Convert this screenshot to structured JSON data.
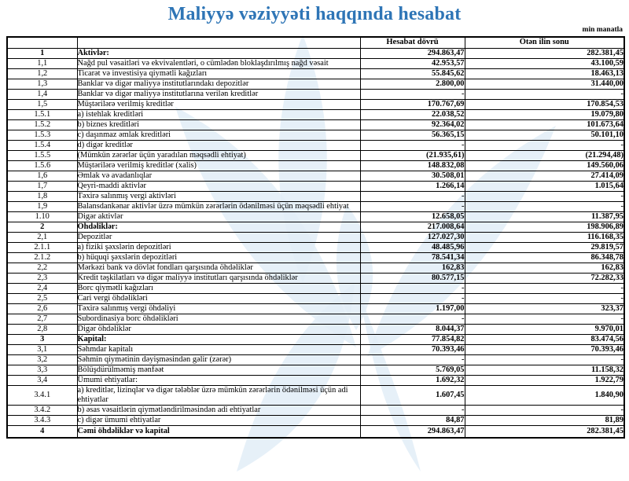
{
  "title": "Maliyyə vəziyyəti haqqında hesabat",
  "unit_note": "min manatla",
  "colors": {
    "title_blue": "#2E75B6",
    "cell_blue": "#9DC3E6",
    "watermark_blue": "#E2EDF7"
  },
  "table": {
    "columns": [
      "Hesabat dövrü",
      "Ötən ilin sonu"
    ],
    "rows": [
      {
        "num": "1",
        "label": "Aktivlər:",
        "cur": "294.863,47",
        "prev": "282.381,45",
        "bold": true
      },
      {
        "num": "1,1",
        "label": "Nağd pul vəsaitləri və  ekvivalentləri, o cümlədən bloklaşdırılmış nağd vəsait",
        "cur": "42.953,57",
        "prev": "43.100,59",
        "bold": false
      },
      {
        "num": "1,2",
        "label": "Ticarət və investisiya qiymətli kağızları",
        "cur": "55.845,62",
        "prev": "18.463,13",
        "bold": false
      },
      {
        "num": "1,3",
        "label": "Banklar və digər maliyyə institutlarındakı depozitlər",
        "cur": "2.800,00",
        "prev": "31.440,00",
        "bold": false
      },
      {
        "num": "1,4",
        "label": "Banklar və digər maliyyə institutlarına verilən kreditlər",
        "cur": "-",
        "prev": "-",
        "bold": false
      },
      {
        "num": "1,5",
        "label": "Müştərilərə verilmiş kreditlər",
        "cur": "170.767,69",
        "prev": "170.854,53",
        "bold": false
      },
      {
        "num": "1.5.1",
        "label": "a) istehlak kreditləri",
        "cur": "22.038,52",
        "prev": "19.079,80",
        "bold": false
      },
      {
        "num": "1.5.2",
        "label": "b) biznes kreditləri",
        "cur": "92.364,02",
        "prev": "101.673,64",
        "bold": false
      },
      {
        "num": "1.5.3",
        "label": "c) daşınmaz əmlak kreditləri",
        "cur": "56.365,15",
        "prev": "50.101,10",
        "bold": false
      },
      {
        "num": "1.5.4",
        "label": "d) digər kreditlər",
        "cur": "-",
        "prev": "-",
        "bold": false
      },
      {
        "num": "1.5.5",
        "label": "(Mümkün zərərlər üçün yaradılan məqsədli ehtiyat)",
        "cur": "(21.935,61)",
        "prev": "(21.294,48)",
        "bold": false
      },
      {
        "num": "1.5.6",
        "label": "Müştərilərə verilmiş kreditlər (xalis)",
        "cur": "148.832,08",
        "prev": "149.560,06",
        "bold": false
      },
      {
        "num": "1,6",
        "label": "Əmlak və avadanlıqlar",
        "cur": "30.508,01",
        "prev": "27.414,09",
        "bold": false
      },
      {
        "num": "1,7",
        "label": "Qeyri-maddi aktivlər",
        "cur": "1.266,14",
        "prev": "1.015,64",
        "bold": false
      },
      {
        "num": "1,8",
        "label": "Təxirə salınmış vergi aktivləri",
        "cur": "-",
        "prev": "-",
        "bold": false
      },
      {
        "num": "1,9",
        "label": "Balansdankənar aktivlər üzrə mümkün zərərlərin ödənilməsi üçün məqsədli ehtiyat",
        "cur": "-",
        "prev": "-",
        "bold": false
      },
      {
        "num": "1.10",
        "label": "Digər aktivlər",
        "cur": "12.658,05",
        "prev": "11.387,95",
        "bold": false
      },
      {
        "num": "2",
        "label": "Öhdəliklər:",
        "cur": "217.008,64",
        "prev": "198.906,89",
        "bold": true
      },
      {
        "num": "2,1",
        "label": "Depozitlər",
        "cur": "127.027,30",
        "prev": "116.168,35",
        "bold": false
      },
      {
        "num": "2.1.1",
        "label": "a) fiziki şəxslərin depozitləri",
        "cur": "48.485,96",
        "prev": "29.819,57",
        "bold": false
      },
      {
        "num": "2.1.2",
        "label": "b) hüquqi şəxslərin depozitləri",
        "cur": "78.541,34",
        "prev": "86.348,78",
        "bold": false
      },
      {
        "num": "2,2",
        "label": "Mərkəzi bank və dövlət fondları qarşısında öhdəliklər",
        "cur": "162,83",
        "prev": "162,83",
        "bold": false
      },
      {
        "num": "2,3",
        "label": "Kredit təşkilatları və digər maliyyə institutları qarşısında öhdəliklər",
        "cur": "80.577,15",
        "prev": "72.282,33",
        "bold": false
      },
      {
        "num": "2,4",
        "label": "Borc qiymətli kağızları",
        "cur": "-",
        "prev": "-",
        "bold": false
      },
      {
        "num": "2,5",
        "label": "Cari vergi öhdəlikləri",
        "cur": "-",
        "prev": "-",
        "bold": false
      },
      {
        "num": "2,6",
        "label": "Təxirə salınmış vergi öhdəliyi",
        "cur": "1.197,00",
        "prev": "323,37",
        "bold": false
      },
      {
        "num": "2,7",
        "label": "Subordinasiya borc öhdəlikləri",
        "cur": "-",
        "prev": "-",
        "bold": false
      },
      {
        "num": "2,8",
        "label": "Digər öhdəliklər",
        "cur": "8.044,37",
        "prev": "9.970,01",
        "bold": false
      },
      {
        "num": "3",
        "label": "Kapital:",
        "cur": "77.854,82",
        "prev": "83.474,56",
        "bold": true
      },
      {
        "num": "3,1",
        "label": "Səhmdar kapitalı",
        "cur": "70.393,46",
        "prev": "70.393,46",
        "bold": false
      },
      {
        "num": "3,2",
        "label": "Səhmin qiymətinin dəyişməsindən gəlir (zərər)",
        "cur": "-",
        "prev": "-",
        "bold": false
      },
      {
        "num": "3,3",
        "label": "Bölüşdürülməmiş mənfəət",
        "cur": "5.769,05",
        "prev": "11.158,32",
        "bold": false
      },
      {
        "num": "3,4",
        "label": "Ümumi ehtiyatlar:",
        "cur": "1.692,32",
        "prev": "1.922,79",
        "bold": false
      },
      {
        "num": "3.4.1",
        "label": "a) kreditlər, lizinqlər və digər tələblər üzrə mümkün zərərlərin ödənilməsi üçün adi ehtiyatlar",
        "cur": "1.607,45",
        "prev": "1.840,90",
        "bold": false
      },
      {
        "num": "3.4.2",
        "label": "b) əsas vəsaitlərin qiymətləndirilməsindən adi ehtiyatlar",
        "cur": "-",
        "prev": "-",
        "bold": false
      },
      {
        "num": "3.4.3",
        "label": "c) digər ümumi ehtiyatlar",
        "cur": "84,87",
        "prev": "81,89",
        "bold": false
      },
      {
        "num": "4",
        "label": "Cəmi öhdəliklər və kapital",
        "cur": "294.863,47",
        "prev": "282.381,45",
        "bold": true
      }
    ]
  }
}
